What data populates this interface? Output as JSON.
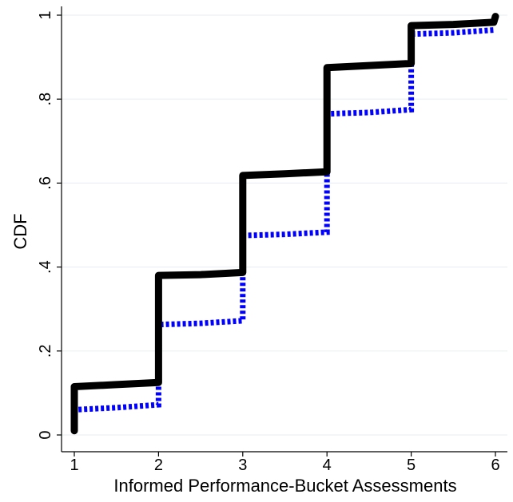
{
  "chart_data": {
    "type": "line",
    "xlabel": "Informed Performance-Bucket Assessments",
    "ylabel": "CDF",
    "xlim": [
      1,
      6
    ],
    "ylim": [
      0,
      1
    ],
    "x_ticks": [
      "1",
      "2",
      "3",
      "4",
      "5",
      "6"
    ],
    "y_ticks": [
      {
        "value": 0,
        "label": "0"
      },
      {
        "value": 0.2,
        "label": ".2"
      },
      {
        "value": 0.4,
        "label": ".4"
      },
      {
        "value": 0.6,
        "label": ".6"
      },
      {
        "value": 0.8,
        "label": ".8"
      },
      {
        "value": 1,
        "label": "1"
      }
    ],
    "grid": "horizontal",
    "legend": "none",
    "series": [
      {
        "style": "solid",
        "color": "#000000",
        "points": [
          [
            1.0,
            0.01
          ],
          [
            1.0,
            0.115
          ],
          [
            1.5,
            0.12
          ],
          [
            2.0,
            0.125
          ],
          [
            2.0,
            0.38
          ],
          [
            2.5,
            0.382
          ],
          [
            3.0,
            0.387
          ],
          [
            3.0,
            0.618
          ],
          [
            3.5,
            0.622
          ],
          [
            4.0,
            0.627
          ],
          [
            4.0,
            0.875
          ],
          [
            4.5,
            0.88
          ],
          [
            5.0,
            0.885
          ],
          [
            5.0,
            0.975
          ],
          [
            5.5,
            0.978
          ],
          [
            5.98,
            0.983
          ],
          [
            6.0,
            0.997
          ]
        ]
      },
      {
        "style": "dotted",
        "color": "#0000ff",
        "points": [
          [
            1.0,
            0.03
          ],
          [
            1.0,
            0.06
          ],
          [
            1.5,
            0.065
          ],
          [
            2.0,
            0.072
          ],
          [
            2.0,
            0.263
          ],
          [
            2.5,
            0.266
          ],
          [
            3.0,
            0.272
          ],
          [
            3.0,
            0.475
          ],
          [
            3.5,
            0.478
          ],
          [
            4.0,
            0.483
          ],
          [
            4.0,
            0.765
          ],
          [
            4.5,
            0.768
          ],
          [
            5.0,
            0.775
          ],
          [
            5.0,
            0.955
          ],
          [
            5.5,
            0.958
          ],
          [
            6.0,
            0.965
          ]
        ]
      }
    ]
  }
}
